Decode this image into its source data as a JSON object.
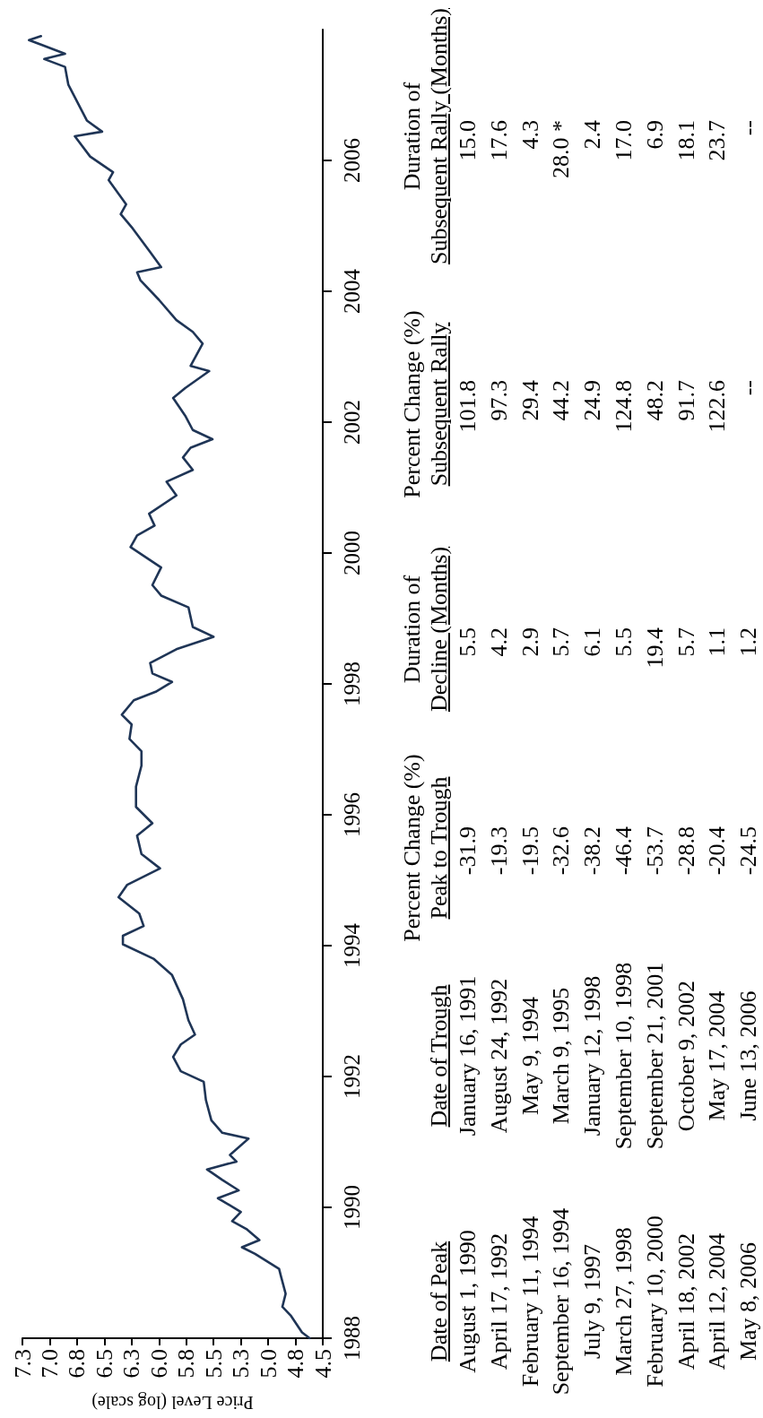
{
  "chart_data": {
    "type": "line",
    "xlabel": "Price Level (log scale)",
    "color": "#1f3556",
    "marker": "none",
    "line_style": "solid",
    "grid": false,
    "ylim": [
      1988,
      2008
    ],
    "yticks": [
      1988,
      1990,
      1992,
      1994,
      1996,
      1998,
      2000,
      2002,
      2004,
      2006
    ],
    "xlim": [
      7.25,
      4.5
    ],
    "xticks": [
      {
        "value": 7.25,
        "label": "7.3"
      },
      {
        "value": 7,
        "label": "7.0"
      },
      {
        "value": 6.75,
        "label": "6.8"
      },
      {
        "value": 6.5,
        "label": "6.5"
      },
      {
        "value": 6.25,
        "label": "6.3"
      },
      {
        "value": 6,
        "label": "6.0"
      },
      {
        "value": 5.75,
        "label": "5.8"
      },
      {
        "value": 5.5,
        "label": "5.5"
      },
      {
        "value": 5.25,
        "label": "5.3"
      },
      {
        "value": 5,
        "label": "5.0"
      },
      {
        "value": 4.75,
        "label": "4.8"
      },
      {
        "value": 4.5,
        "label": "4.5"
      }
    ],
    "values": [
      1988.0,
      1988.09,
      1988.34,
      1988.48,
      1988.68,
      1988.93,
      1989.06,
      1989.29,
      1989.39,
      1989.5,
      1989.67,
      1989.79,
      1989.93,
      1990.14,
      1990.26,
      1990.42,
      1990.58,
      1990.7,
      1990.8,
      1991.05,
      1991.14,
      1991.33,
      1991.64,
      1991.92,
      1992.08,
      1992.3,
      1992.49,
      1992.64,
      1992.86,
      1993.18,
      1993.55,
      1993.8,
      1994.02,
      1994.15,
      1994.3,
      1994.49,
      1994.74,
      1994.93,
      1995.18,
      1995.4,
      1995.68,
      1995.87,
      1996.12,
      1996.43,
      1996.75,
      1996.97,
      1997.16,
      1997.38,
      1997.53,
      1997.75,
      1997.88,
      1998.03,
      1998.16,
      1998.32,
      1998.53,
      1998.72,
      1998.87,
      1999.17,
      1999.35,
      1999.51,
      1999.78,
      2000.09,
      2000.27,
      2000.42,
      2000.6,
      2000.88,
      2001.09,
      2001.27,
      2001.46,
      2001.61,
      2001.74,
      2001.88,
      2002.1,
      2002.37,
      2002.52,
      2002.65,
      2002.78,
      2002.86,
      2003.2,
      2003.38,
      2003.56,
      2003.87,
      2004.17,
      2004.29,
      2004.37,
      2004.6,
      2004.96,
      2005.18,
      2005.33,
      2005.7,
      2005.82,
      2006.06,
      2006.37,
      2006.44,
      2006.61,
      2007.16,
      2007.43,
      2007.55,
      2007.63,
      2007.77,
      2007.84,
      2007.9
    ],
    "x": [
      4.62,
      4.69,
      4.79,
      4.87,
      4.84,
      4.88,
      4.9,
      5.12,
      5.24,
      5.08,
      5.2,
      5.33,
      5.25,
      5.46,
      5.27,
      5.42,
      5.56,
      5.29,
      5.35,
      5.18,
      5.42,
      5.52,
      5.57,
      5.59,
      5.8,
      5.87,
      5.8,
      5.67,
      5.73,
      5.78,
      5.88,
      6.05,
      6.33,
      6.33,
      6.14,
      6.18,
      6.37,
      6.29,
      5.99,
      6.16,
      6.2,
      6.06,
      6.21,
      6.21,
      6.16,
      6.16,
      6.27,
      6.25,
      6.34,
      6.23,
      6.03,
      5.88,
      6.06,
      6.08,
      5.84,
      5.5,
      5.69,
      5.73,
      5.98,
      6.06,
      5.98,
      6.26,
      6.2,
      6.04,
      6.09,
      5.84,
      5.93,
      5.69,
      5.78,
      5.71,
      5.51,
      5.69,
      5.76,
      5.87,
      5.76,
      5.65,
      5.54,
      5.71,
      5.6,
      5.69,
      5.84,
      6.0,
      6.17,
      6.2,
      5.98,
      6.08,
      6.24,
      6.35,
      6.3,
      6.46,
      6.42,
      6.63,
      6.77,
      6.52,
      6.66,
      6.83,
      6.86,
      7.05,
      6.86,
      7.08,
      7.19,
      7.08
    ],
    "annotations": [
      "Percent Change (%)",
      "Duration of",
      "Percent Change (%)",
      "Duration of",
      "Date of Peak",
      "Date of Trough",
      "Peak to Trough",
      "Decline (Months)",
      "Subsequent Rally",
      "Subsequent Rally (Months)",
      "August 1, 1990",
      "January 16, 1991",
      "-31.9",
      "5.5",
      "101.8",
      "15.0",
      "April 17, 1992",
      "August 24, 1992",
      "-19.3",
      "4.2",
      "97.3",
      "17.6",
      "February 11, 1994",
      "May 9, 1994",
      "-19.5",
      "2.9",
      "29.4",
      "4.3",
      "September 16, 1994",
      "March 9, 1995",
      "-32.6",
      "5.7",
      "44.2",
      "28.0 *",
      "July 9, 1997",
      "January 12, 1998",
      "-38.2",
      "6.1",
      "24.9",
      "2.4",
      "March 27, 1998",
      "September 10, 1998",
      "-46.4",
      "5.5",
      "124.8",
      "17.0",
      "February 10, 2000",
      "September 21, 2001",
      "-53.7",
      "19.4",
      "48.2",
      "6.9",
      "April 18, 2002",
      "October 9, 2002",
      "-28.8",
      "5.7",
      "91.7",
      "18.1",
      "April 12, 2004",
      "May 17, 2004",
      "-20.4",
      "1.1",
      "122.6",
      "23.7",
      "May 8, 2006",
      "June 13, 2006",
      "-24.5",
      "1.2",
      "--",
      "--"
    ]
  }
}
